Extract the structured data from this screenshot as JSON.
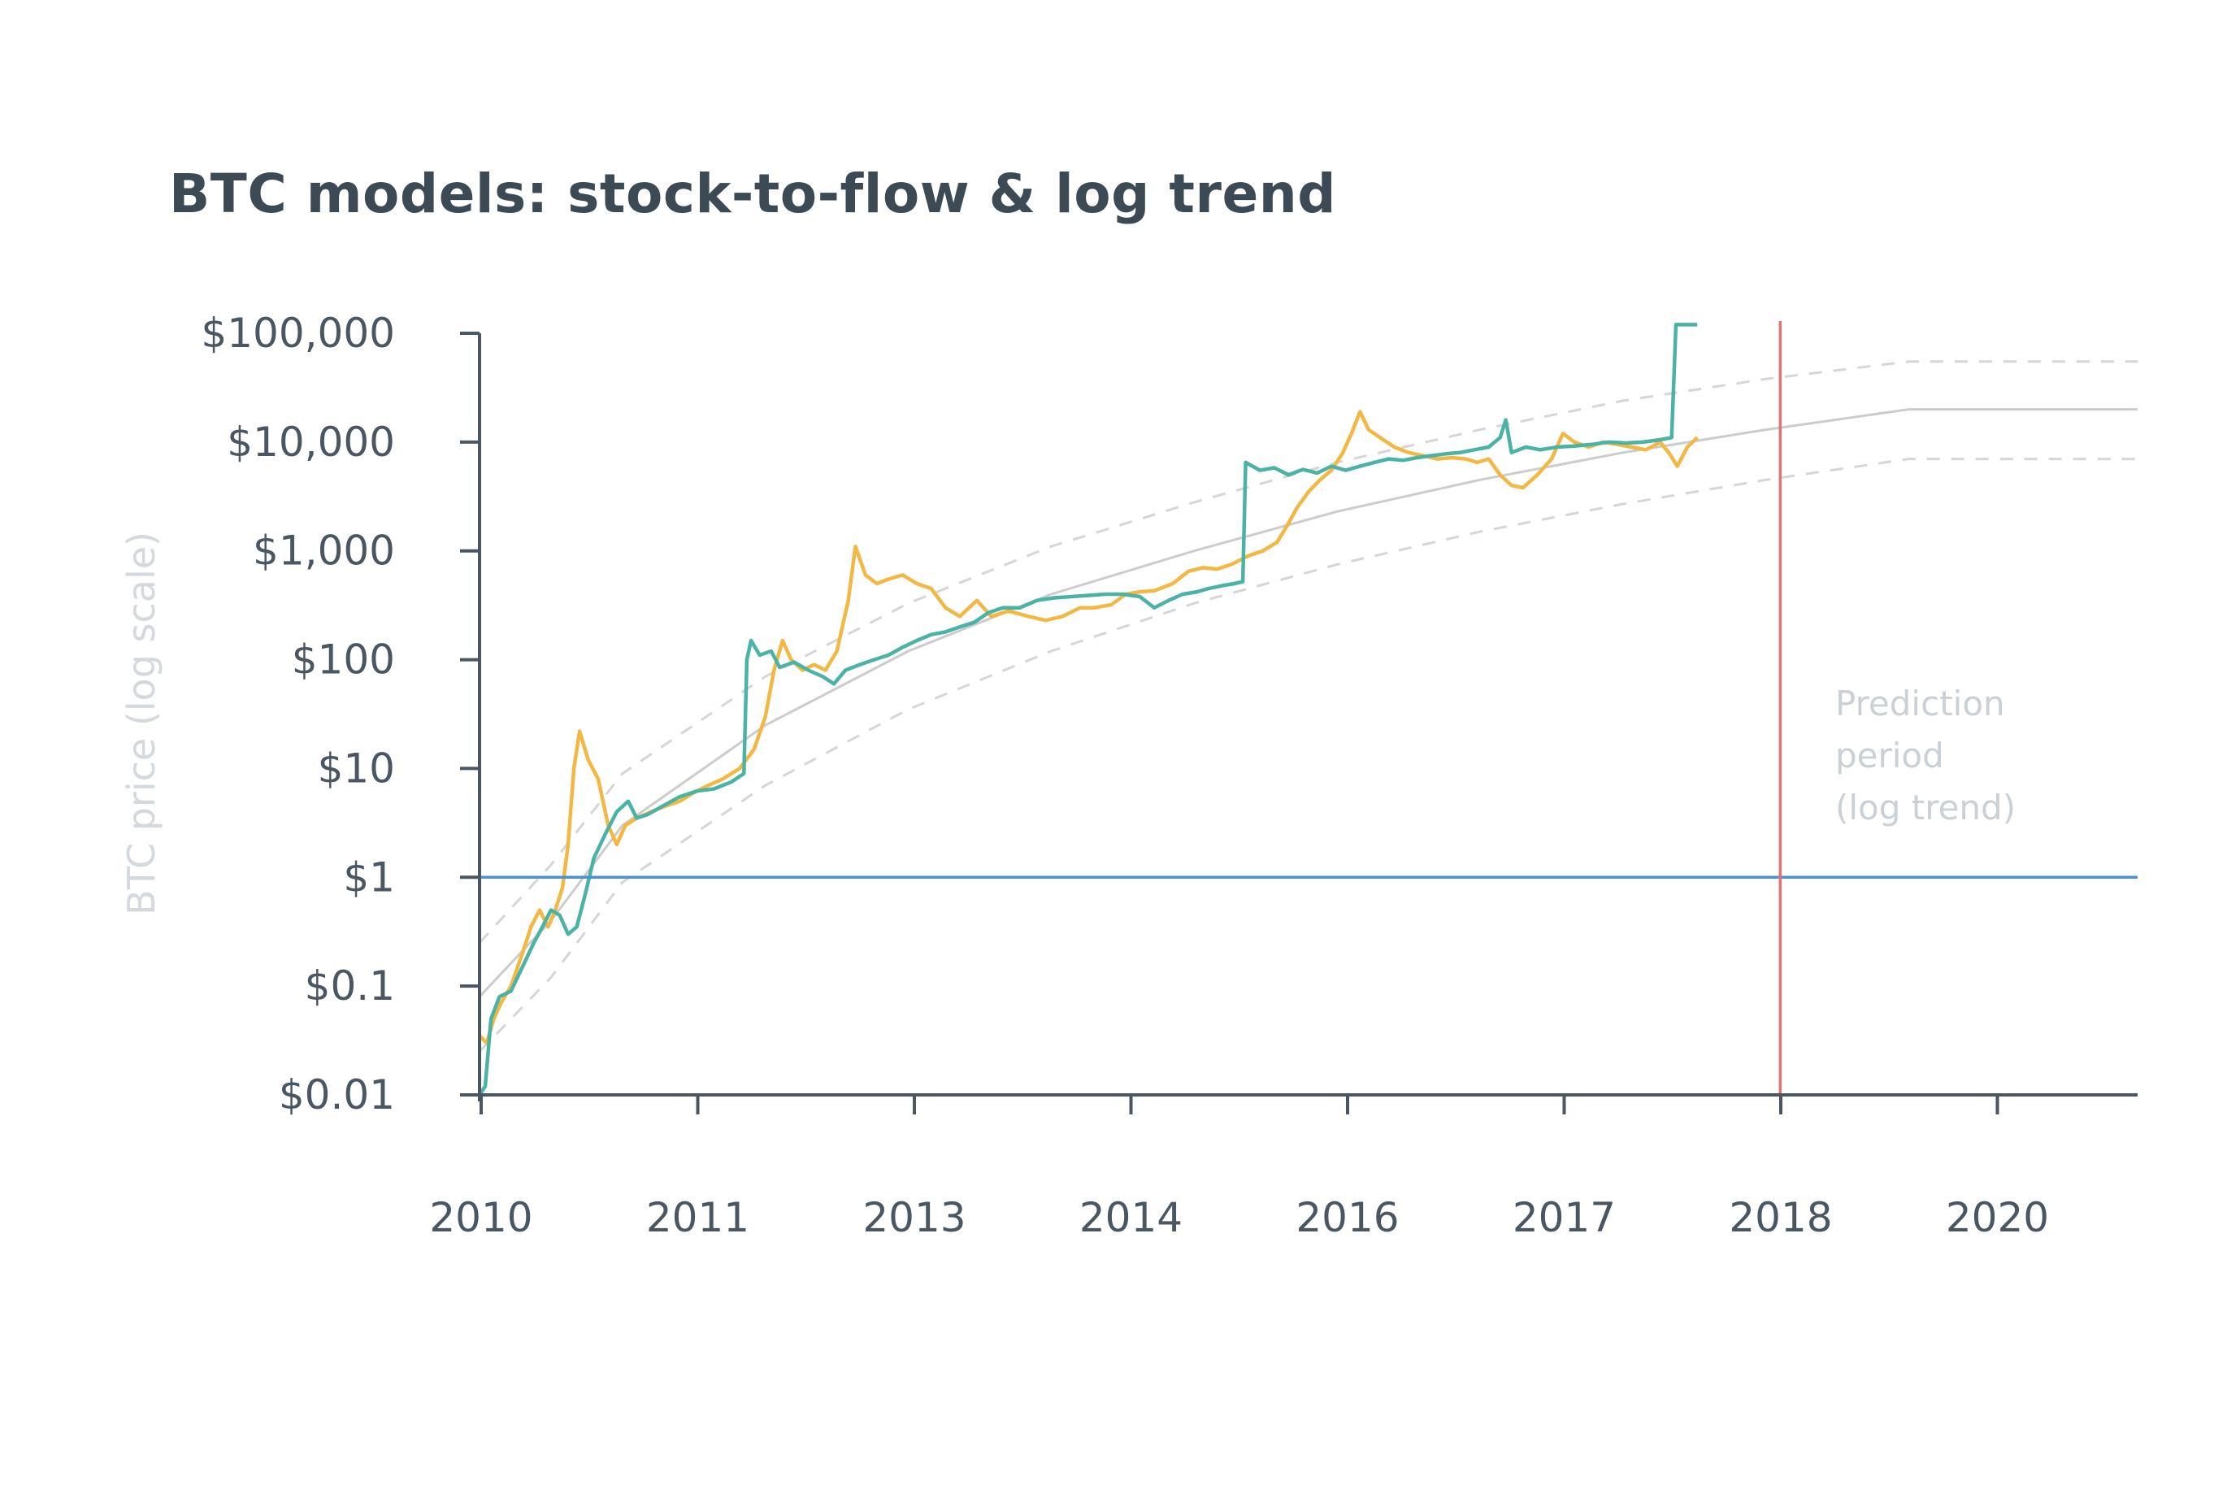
{
  "chart_data": {
    "type": "line",
    "title": "BTC models: stock-to-flow & log trend",
    "ylabel": "BTC price (log scale)",
    "yscale": "log",
    "ylim": [
      0.01,
      100000
    ],
    "xlim": [
      2010.0,
      2021.6
    ],
    "x_tick_labels": [
      "2010",
      "2011",
      "2013",
      "2014",
      "2016",
      "2017",
      "2018",
      "2020"
    ],
    "y_tick_labels": [
      "$100,000",
      "$10,000",
      "$1,000",
      "$100",
      "$10",
      "$1",
      "$0.1",
      "$0.01"
    ],
    "y_tick_values": [
      100000,
      10000,
      1000,
      100,
      10,
      1,
      0.1,
      0.01
    ],
    "reference_line_y": 1,
    "prediction_start": 2019.1,
    "annotation": [
      "Prediction",
      "period",
      "(log trend)"
    ],
    "colors": {
      "price": "#f2b843",
      "stock_to_flow": "#4ab3a6",
      "reference": "#4a90d9",
      "prediction_marker": "#e0736e",
      "trend": "#cccccc",
      "band": "#d6d6d6",
      "axis": "#4a5763"
    },
    "series": [
      {
        "points": [
          [
            2010.0,
            0.035
          ],
          [
            2010.05,
            0.03
          ],
          [
            2010.1,
            0.05
          ],
          [
            2010.15,
            0.07
          ],
          [
            2010.22,
            0.1
          ],
          [
            2010.3,
            0.2
          ],
          [
            2010.36,
            0.35
          ],
          [
            2010.42,
            0.5
          ],
          [
            2010.48,
            0.35
          ],
          [
            2010.53,
            0.5
          ],
          [
            2010.58,
            0.8
          ],
          [
            2010.62,
            2
          ],
          [
            2010.66,
            10
          ],
          [
            2010.7,
            22
          ],
          [
            2010.76,
            12
          ],
          [
            2010.83,
            8
          ],
          [
            2010.9,
            3
          ],
          [
            2010.96,
            2
          ],
          [
            2011.02,
            3
          ],
          [
            2011.1,
            3.5
          ],
          [
            2011.2,
            4
          ],
          [
            2011.3,
            4.5
          ],
          [
            2011.4,
            5
          ],
          [
            2011.5,
            6
          ],
          [
            2011.6,
            7
          ],
          [
            2011.7,
            8
          ],
          [
            2011.82,
            10
          ],
          [
            2011.92,
            15
          ],
          [
            2012.0,
            30
          ],
          [
            2012.06,
            80
          ],
          [
            2012.12,
            150
          ],
          [
            2012.18,
            100
          ],
          [
            2012.26,
            80
          ],
          [
            2012.34,
            90
          ],
          [
            2012.42,
            80
          ],
          [
            2012.5,
            120
          ],
          [
            2012.58,
            350
          ],
          [
            2012.63,
            1100
          ],
          [
            2012.7,
            600
          ],
          [
            2012.78,
            500
          ],
          [
            2012.86,
            550
          ],
          [
            2012.96,
            600
          ],
          [
            2013.06,
            500
          ],
          [
            2013.16,
            450
          ],
          [
            2013.26,
            300
          ],
          [
            2013.36,
            250
          ],
          [
            2013.48,
            350
          ],
          [
            2013.58,
            250
          ],
          [
            2013.7,
            280
          ],
          [
            2013.84,
            250
          ],
          [
            2013.96,
            230
          ],
          [
            2014.08,
            250
          ],
          [
            2014.2,
            300
          ],
          [
            2014.3,
            300
          ],
          [
            2014.42,
            320
          ],
          [
            2014.52,
            400
          ],
          [
            2014.62,
            420
          ],
          [
            2014.72,
            430
          ],
          [
            2014.85,
            500
          ],
          [
            2014.96,
            650
          ],
          [
            2015.06,
            700
          ],
          [
            2015.16,
            680
          ],
          [
            2015.26,
            750
          ],
          [
            2015.38,
            900
          ],
          [
            2015.48,
            1000
          ],
          [
            2015.58,
            1200
          ],
          [
            2015.66,
            1800
          ],
          [
            2015.72,
            2500
          ],
          [
            2015.8,
            3500
          ],
          [
            2015.88,
            4500
          ],
          [
            2015.96,
            5500
          ],
          [
            2016.04,
            8000
          ],
          [
            2016.1,
            12000
          ],
          [
            2016.16,
            19000
          ],
          [
            2016.22,
            13000
          ],
          [
            2016.3,
            11000
          ],
          [
            2016.4,
            9000
          ],
          [
            2016.5,
            8000
          ],
          [
            2016.6,
            7500
          ],
          [
            2016.7,
            7000
          ],
          [
            2016.8,
            7200
          ],
          [
            2016.9,
            7000
          ],
          [
            2016.98,
            6500
          ],
          [
            2017.06,
            7000
          ],
          [
            2017.14,
            5000
          ],
          [
            2017.22,
            4000
          ],
          [
            2017.3,
            3800
          ],
          [
            2017.4,
            5000
          ],
          [
            2017.5,
            7000
          ],
          [
            2017.58,
            12000
          ],
          [
            2017.66,
            10000
          ],
          [
            2017.76,
            9000
          ],
          [
            2017.86,
            10000
          ],
          [
            2017.96,
            9500
          ],
          [
            2018.06,
            9000
          ],
          [
            2018.16,
            8500
          ],
          [
            2018.26,
            10000
          ],
          [
            2018.32,
            8000
          ],
          [
            2018.38,
            6000
          ],
          [
            2018.45,
            9000
          ],
          [
            2018.52,
            11000
          ]
        ]
      },
      {
        "points": [
          [
            2010.0,
            0.01
          ],
          [
            2010.04,
            0.012
          ],
          [
            2010.08,
            0.05
          ],
          [
            2010.14,
            0.08
          ],
          [
            2010.22,
            0.09
          ],
          [
            2010.3,
            0.15
          ],
          [
            2010.38,
            0.25
          ],
          [
            2010.44,
            0.35
          ],
          [
            2010.5,
            0.5
          ],
          [
            2010.56,
            0.45
          ],
          [
            2010.62,
            0.3
          ],
          [
            2010.68,
            0.35
          ],
          [
            2010.74,
            0.7
          ],
          [
            2010.8,
            1.5
          ],
          [
            2010.88,
            2.5
          ],
          [
            2010.96,
            4
          ],
          [
            2011.04,
            5
          ],
          [
            2011.1,
            3.5
          ],
          [
            2011.18,
            3.8
          ],
          [
            2011.28,
            4.5
          ],
          [
            2011.4,
            5.5
          ],
          [
            2011.52,
            6.2
          ],
          [
            2011.64,
            6.5
          ],
          [
            2011.76,
            7.5
          ],
          [
            2011.85,
            9
          ],
          [
            2011.87,
            100
          ],
          [
            2011.9,
            150
          ],
          [
            2011.96,
            110
          ],
          [
            2012.04,
            120
          ],
          [
            2012.1,
            85
          ],
          [
            2012.2,
            95
          ],
          [
            2012.3,
            80
          ],
          [
            2012.4,
            70
          ],
          [
            2012.48,
            60
          ],
          [
            2012.56,
            80
          ],
          [
            2012.66,
            90
          ],
          [
            2012.76,
            100
          ],
          [
            2012.86,
            110
          ],
          [
            2012.96,
            130
          ],
          [
            2013.06,
            150
          ],
          [
            2013.16,
            170
          ],
          [
            2013.26,
            180
          ],
          [
            2013.36,
            200
          ],
          [
            2013.46,
            220
          ],
          [
            2013.56,
            270
          ],
          [
            2013.66,
            300
          ],
          [
            2013.78,
            300
          ],
          [
            2013.9,
            350
          ],
          [
            2014.02,
            370
          ],
          [
            2014.14,
            380
          ],
          [
            2014.26,
            390
          ],
          [
            2014.38,
            400
          ],
          [
            2014.5,
            400
          ],
          [
            2014.62,
            380
          ],
          [
            2014.72,
            300
          ],
          [
            2014.82,
            350
          ],
          [
            2014.92,
            400
          ],
          [
            2015.02,
            420
          ],
          [
            2015.1,
            450
          ],
          [
            2015.2,
            480
          ],
          [
            2015.28,
            500
          ],
          [
            2015.34,
            520
          ],
          [
            2015.36,
            6500
          ],
          [
            2015.46,
            5500
          ],
          [
            2015.56,
            5800
          ],
          [
            2015.66,
            5000
          ],
          [
            2015.76,
            5600
          ],
          [
            2015.86,
            5200
          ],
          [
            2015.96,
            6000
          ],
          [
            2016.06,
            5500
          ],
          [
            2016.16,
            6000
          ],
          [
            2016.26,
            6500
          ],
          [
            2016.36,
            7000
          ],
          [
            2016.46,
            6800
          ],
          [
            2016.56,
            7200
          ],
          [
            2016.66,
            7500
          ],
          [
            2016.76,
            7800
          ],
          [
            2016.86,
            8000
          ],
          [
            2016.96,
            8500
          ],
          [
            2017.06,
            9000
          ],
          [
            2017.14,
            11000
          ],
          [
            2017.18,
            16000
          ],
          [
            2017.22,
            8000
          ],
          [
            2017.32,
            9000
          ],
          [
            2017.42,
            8500
          ],
          [
            2017.54,
            9000
          ],
          [
            2017.66,
            9200
          ],
          [
            2017.78,
            9500
          ],
          [
            2017.9,
            10000
          ],
          [
            2018.02,
            9800
          ],
          [
            2018.14,
            10000
          ],
          [
            2018.26,
            10500
          ],
          [
            2018.34,
            11000
          ],
          [
            2018.37,
            120000
          ],
          [
            2018.45,
            120000
          ],
          [
            2018.52,
            120000
          ]
        ]
      }
    ],
    "trend_lines": [
      {
        "role": "center",
        "points": [
          [
            2010.0,
            0.08
          ],
          [
            2010.5,
            0.4
          ],
          [
            2011.0,
            3
          ],
          [
            2012.0,
            25
          ],
          [
            2013.0,
            120
          ],
          [
            2014.0,
            400
          ],
          [
            2015.0,
            1000
          ],
          [
            2016.0,
            2300
          ],
          [
            2017.0,
            4500
          ],
          [
            2018.0,
            8000
          ],
          [
            2019.0,
            13000
          ],
          [
            2020.0,
            20000
          ],
          [
            2021.6,
            20000
          ]
        ]
      },
      {
        "role": "upper",
        "points": [
          [
            2010.0,
            0.25
          ],
          [
            2010.5,
            1.3
          ],
          [
            2011.0,
            9
          ],
          [
            2012.0,
            70
          ],
          [
            2013.0,
            330
          ],
          [
            2014.0,
            1100
          ],
          [
            2015.0,
            2800
          ],
          [
            2016.0,
            6500
          ],
          [
            2017.0,
            13000
          ],
          [
            2018.0,
            24000
          ],
          [
            2019.0,
            38000
          ],
          [
            2020.0,
            55000
          ],
          [
            2021.6,
            55000
          ]
        ]
      },
      {
        "role": "lower",
        "points": [
          [
            2010.0,
            0.025
          ],
          [
            2010.5,
            0.12
          ],
          [
            2011.0,
            0.9
          ],
          [
            2012.0,
            7
          ],
          [
            2013.0,
            35
          ],
          [
            2014.0,
            120
          ],
          [
            2015.0,
            330
          ],
          [
            2016.0,
            750
          ],
          [
            2017.0,
            1500
          ],
          [
            2018.0,
            2700
          ],
          [
            2019.0,
            4500
          ],
          [
            2020.0,
            7000
          ],
          [
            2021.6,
            7000
          ]
        ]
      }
    ]
  }
}
